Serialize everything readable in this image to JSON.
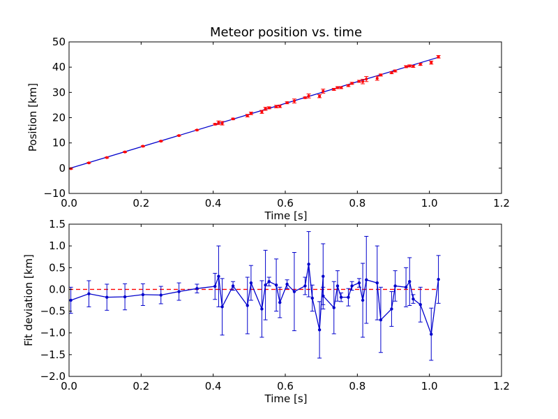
{
  "chart_data": [
    {
      "type": "scatter",
      "title": "Meteor position vs. time",
      "xlabel": "Time [s]",
      "ylabel": "Position [km]",
      "xlim": [
        0.0,
        1.2
      ],
      "ylim": [
        -10,
        50
      ],
      "xticks": [
        "0.0",
        "0.2",
        "0.4",
        "0.6",
        "0.8",
        "1.0",
        "1.2"
      ],
      "yticks": [
        "−10",
        "0",
        "10",
        "20",
        "30",
        "40",
        "50"
      ],
      "grid": false,
      "colors": {
        "points": "#ff0000",
        "fit": "#0000cc"
      },
      "fit_line": {
        "x": [
          0.0,
          1.025
        ],
        "y": [
          -0.15,
          43.9
        ]
      },
      "points": {
        "x": [
          0.005,
          0.055,
          0.105,
          0.155,
          0.205,
          0.255,
          0.305,
          0.355,
          0.405,
          0.415,
          0.425,
          0.455,
          0.495,
          0.505,
          0.535,
          0.545,
          0.555,
          0.575,
          0.585,
          0.605,
          0.625,
          0.655,
          0.665,
          0.695,
          0.705,
          0.735,
          0.745,
          0.755,
          0.775,
          0.785,
          0.805,
          0.815,
          0.825,
          0.855,
          0.865,
          0.895,
          0.905,
          0.935,
          0.945,
          0.955,
          0.975,
          1.005,
          1.025
        ],
        "y": [
          -0.2,
          2.1,
          4.2,
          6.4,
          8.7,
          10.7,
          12.9,
          15.1,
          17.4,
          18.0,
          17.8,
          19.5,
          20.8,
          21.7,
          22.3,
          23.5,
          23.9,
          24.4,
          24.5,
          25.9,
          26.6,
          27.9,
          28.6,
          28.5,
          30.5,
          31.2,
          31.9,
          31.9,
          32.7,
          33.6,
          34.4,
          34.3,
          35.3,
          35.6,
          36.9,
          37.8,
          38.5,
          40.2,
          40.5,
          40.3,
          41.1,
          41.8,
          44.1
        ]
      },
      "errors": [
        0.2,
        0.2,
        0.2,
        0.2,
        0.2,
        0.2,
        0.2,
        0.2,
        0.3,
        0.7,
        0.7,
        0.3,
        0.5,
        0.5,
        0.6,
        0.6,
        0.4,
        0.5,
        0.5,
        0.4,
        0.8,
        0.3,
        0.8,
        0.6,
        0.8,
        0.4,
        0.4,
        0.4,
        0.4,
        0.4,
        0.4,
        0.9,
        1.0,
        0.8,
        0.4,
        0.4,
        0.4,
        0.4,
        0.4,
        0.4,
        0.4,
        0.6,
        0.5
      ]
    },
    {
      "type": "line",
      "title": "",
      "xlabel": "Time [s]",
      "ylabel": "Fit deviation [km]",
      "xlim": [
        0.0,
        1.2
      ],
      "ylim": [
        -2.0,
        1.5
      ],
      "xticks": [
        "0.0",
        "0.2",
        "0.4",
        "0.6",
        "0.8",
        "1.0",
        "1.2"
      ],
      "yticks": [
        "−2.0",
        "−1.5",
        "−1.0",
        "−0.5",
        "0.0",
        "0.5",
        "1.0",
        "1.5"
      ],
      "grid": false,
      "colors": {
        "series": "#0000cc",
        "reference": "#ff0000"
      },
      "reference_line": {
        "y": 0.0,
        "x": [
          0.0,
          1.025
        ],
        "style": "dashed"
      },
      "series": {
        "x": [
          0.005,
          0.055,
          0.105,
          0.155,
          0.205,
          0.255,
          0.305,
          0.355,
          0.405,
          0.415,
          0.425,
          0.455,
          0.495,
          0.505,
          0.535,
          0.545,
          0.555,
          0.575,
          0.585,
          0.605,
          0.625,
          0.655,
          0.665,
          0.675,
          0.695,
          0.705,
          0.705,
          0.735,
          0.745,
          0.755,
          0.775,
          0.785,
          0.805,
          0.815,
          0.825,
          0.855,
          0.865,
          0.895,
          0.905,
          0.935,
          0.945,
          0.955,
          0.975,
          1.005,
          1.025
        ],
        "y": [
          -0.25,
          -0.1,
          -0.18,
          -0.17,
          -0.12,
          -0.13,
          -0.05,
          0.02,
          0.07,
          0.3,
          -0.4,
          0.08,
          -0.37,
          0.15,
          -0.45,
          0.1,
          0.18,
          0.1,
          -0.3,
          0.12,
          -0.05,
          0.08,
          0.58,
          -0.2,
          -0.93,
          0.3,
          -0.15,
          -0.42,
          0.08,
          -0.18,
          -0.18,
          0.08,
          0.15,
          -0.25,
          0.22,
          0.15,
          -0.7,
          -0.45,
          0.08,
          0.05,
          0.18,
          -0.22,
          -0.35,
          -1.03,
          0.23
        ]
      },
      "errors": [
        0.3,
        0.3,
        0.3,
        0.3,
        0.25,
        0.2,
        0.2,
        0.1,
        0.3,
        0.7,
        0.65,
        0.1,
        0.65,
        0.4,
        0.65,
        0.8,
        0.1,
        0.6,
        0.35,
        0.1,
        0.9,
        0.2,
        0.75,
        0.3,
        0.65,
        0.75,
        0.2,
        0.6,
        0.35,
        0.1,
        0.2,
        0.1,
        0.1,
        0.85,
        1.0,
        0.85,
        0.75,
        0.4,
        0.35,
        0.45,
        0.55,
        0.1,
        0.4,
        0.6,
        0.55
      ]
    }
  ]
}
